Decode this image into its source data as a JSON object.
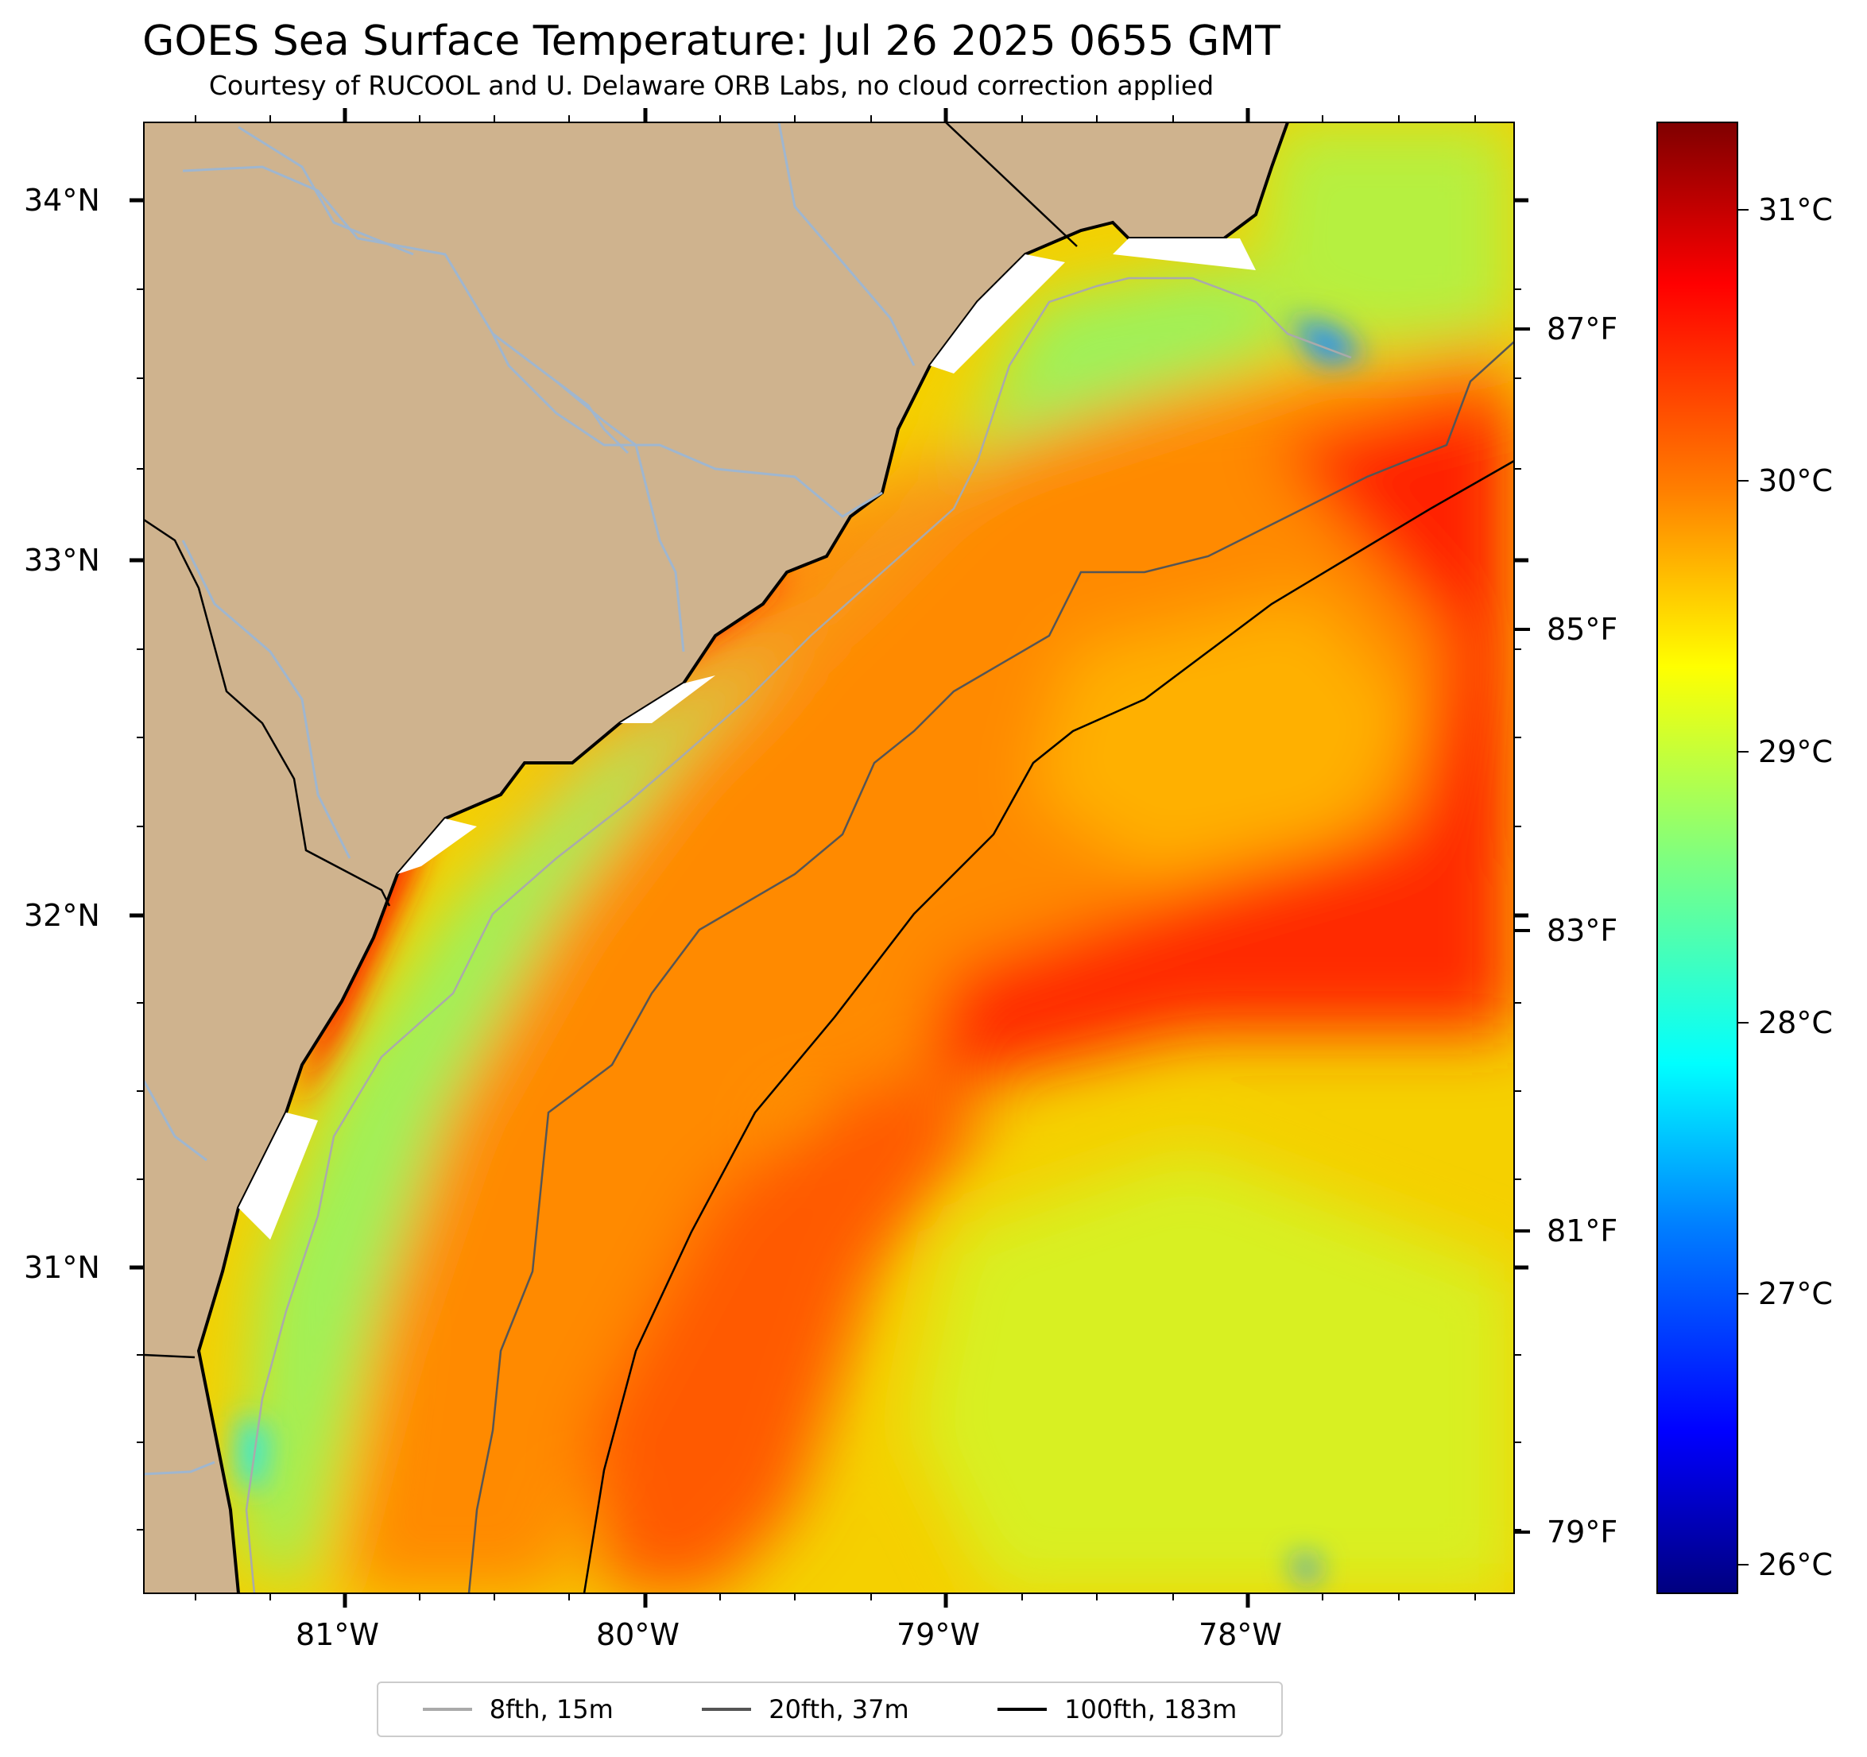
{
  "title": "GOES Sea Surface Temperature: Jul 26 2025 0655 GMT",
  "subtitle": "Courtesy of RUCOOL and U. Delaware ORB Labs, no cloud correction applied",
  "map": {
    "lat_labels": [
      "34°N",
      "33°N",
      "32°N",
      "31°N"
    ],
    "lon_labels": [
      "81°W",
      "80°W",
      "79°W",
      "78°W"
    ],
    "land_color": "#cfb38e",
    "river_color": "#9fb6cf"
  },
  "colorbar": {
    "celsius_labels": [
      "31°C",
      "30°C",
      "29°C",
      "28°C",
      "27°C",
      "26°C"
    ],
    "fahrenheit_labels": [
      "87°F",
      "85°F",
      "83°F",
      "81°F",
      "79°F"
    ],
    "colormap": [
      "#00007f",
      "#0000ff",
      "#007fff",
      "#00ffff",
      "#7fff7f",
      "#ffff00",
      "#ff7f00",
      "#ff0000",
      "#7f0000"
    ]
  },
  "legend": [
    {
      "label": "8fth, 15m",
      "color": "#aaaaaa"
    },
    {
      "label": "20fth, 37m",
      "color": "#555555"
    },
    {
      "label": "100fth, 183m",
      "color": "#000000"
    }
  ]
}
